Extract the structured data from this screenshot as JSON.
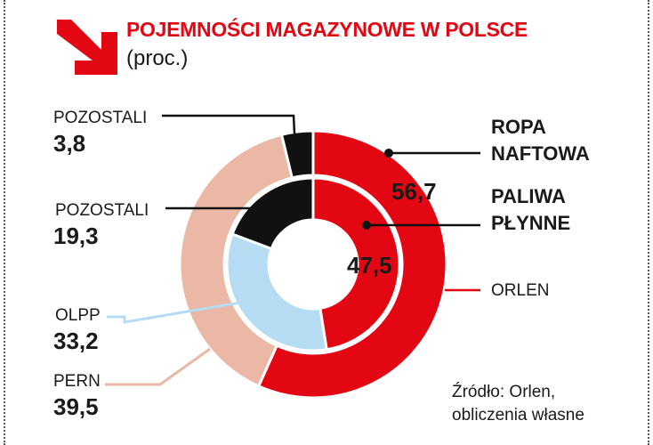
{
  "header": {
    "title": "POJEMNOŚCI MAGAZYNOWE W POLSCE",
    "subtitle": "(proc.)"
  },
  "legend": {
    "outer_ring_label": [
      "ROPA",
      "NAFTOWA"
    ],
    "inner_ring_label": [
      "PALIWA",
      "PŁYNNE"
    ]
  },
  "labels": {
    "outer_pozostali_name": "POZOSTALI",
    "outer_pozostali_value": "3,8",
    "inner_pozostali_name": "POZOSTALI",
    "inner_pozostali_value": "19,3",
    "olpp_name": "OLPP",
    "olpp_value": "33,2",
    "pern_name": "PERN",
    "pern_value": "39,5",
    "orlen_name": "ORLEN",
    "orlen_outer_value": "56,7",
    "orlen_inner_value": "47,5"
  },
  "source": [
    "Źródło: Orlen,",
    "obliczenia własne"
  ],
  "colors": {
    "accent": "#e30613",
    "orlen": "#e30613",
    "pern": "#ebb8a6",
    "olpp": "#b5dcf3",
    "pozostali": "#111111"
  },
  "chart_data": [
    {
      "type": "pie",
      "ring": "outer",
      "title": "ROPA NAFTOWA",
      "categories": [
        "ORLEN",
        "PERN",
        "POZOSTALI"
      ],
      "values": [
        56.7,
        39.5,
        3.8
      ],
      "colors": [
        "#e30613",
        "#ebb8a6",
        "#111111"
      ]
    },
    {
      "type": "pie",
      "ring": "inner",
      "title": "PALIWA PŁYNNE",
      "categories": [
        "ORLEN",
        "OLPP",
        "POZOSTALI"
      ],
      "values": [
        47.5,
        33.2,
        19.3
      ],
      "colors": [
        "#e30613",
        "#b5dcf3",
        "#111111"
      ]
    }
  ]
}
